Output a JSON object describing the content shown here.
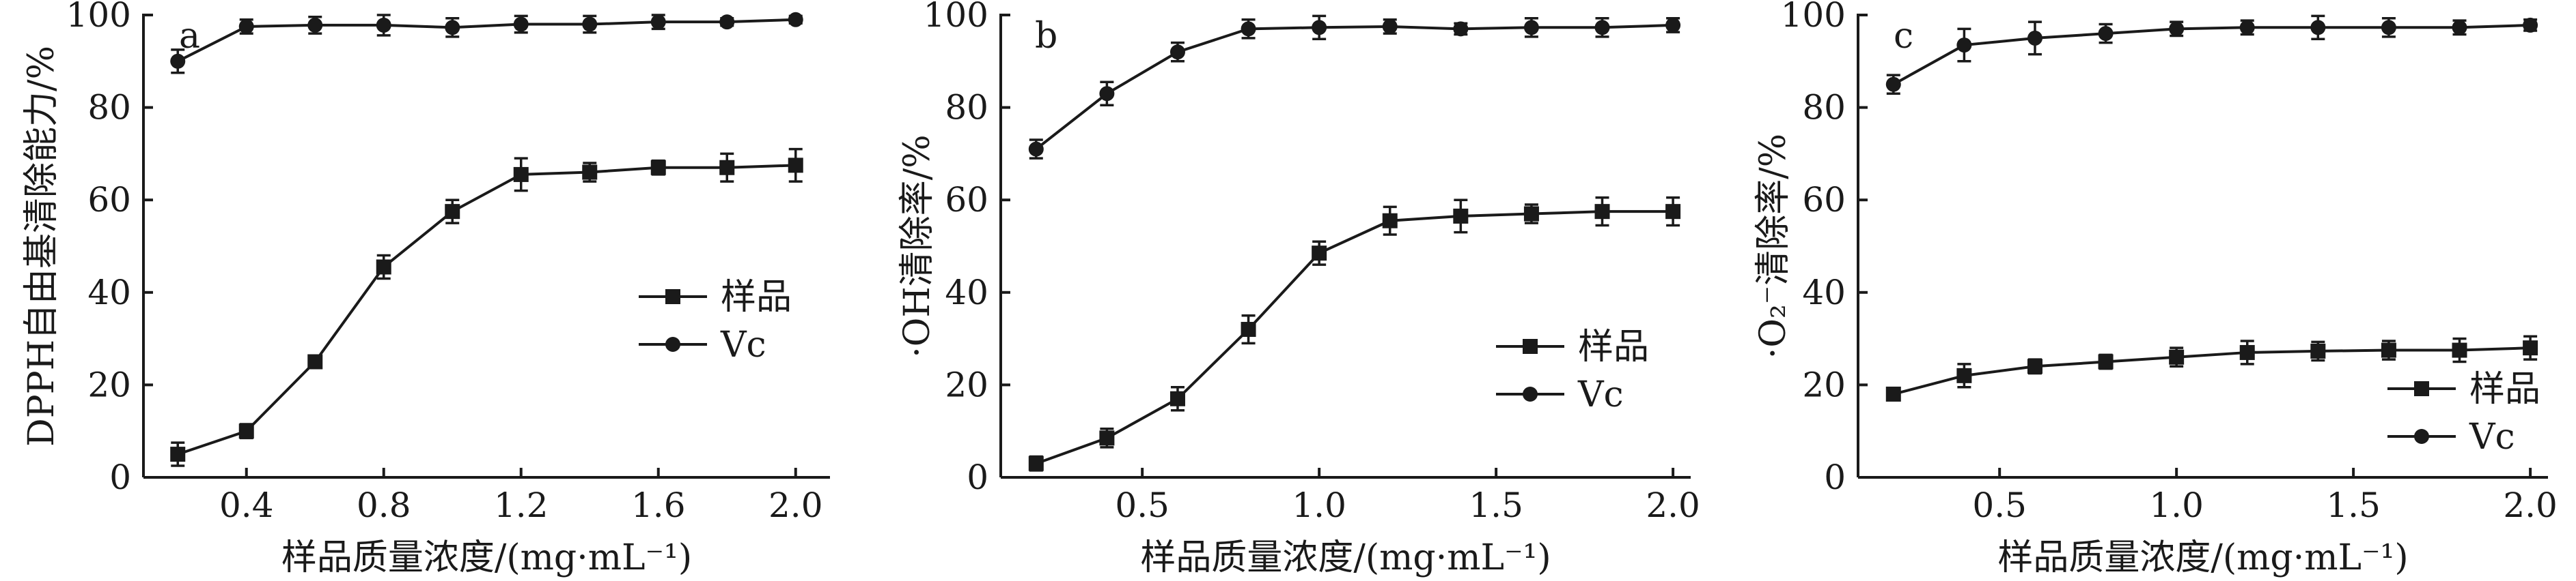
{
  "chart_data": [
    {
      "type": "line",
      "panel": "a",
      "ylabel": "DPPH自由基清除能力/%",
      "xlabel": "样品质量浓度/(mg·mL⁻¹)",
      "xlim": [
        0.1,
        2.1
      ],
      "ylim": [
        0,
        100
      ],
      "xticks": [
        "0.4",
        "0.8",
        "1.2",
        "1.6",
        "2.0"
      ],
      "xtick_values": [
        0.4,
        0.8,
        1.2,
        1.6,
        2.0
      ],
      "yticks": [
        "0",
        "20",
        "40",
        "60",
        "80",
        "100"
      ],
      "ytick_values": [
        0,
        20,
        40,
        60,
        80,
        100
      ],
      "legend_position": "center-right",
      "x": [
        0.2,
        0.4,
        0.6,
        0.8,
        1.0,
        1.2,
        1.4,
        1.6,
        1.8,
        2.0
      ],
      "series": [
        {
          "name": "样品",
          "marker": "square",
          "values": [
            5,
            10,
            25,
            45.5,
            57.5,
            65.5,
            66,
            67,
            67,
            67.5
          ],
          "errors": [
            2.5,
            1.5,
            0.8,
            2.5,
            2.5,
            3.5,
            2,
            1.5,
            3,
            3.5
          ]
        },
        {
          "name": "Vc",
          "marker": "circle",
          "values": [
            90,
            97.5,
            97.8,
            97.8,
            97.3,
            98,
            98,
            98.5,
            98.5,
            99
          ],
          "errors": [
            2.5,
            1.5,
            1.8,
            2.2,
            2,
            1.8,
            1.8,
            1.5,
            0.8,
            0.8
          ]
        }
      ]
    },
    {
      "type": "line",
      "panel": "b",
      "ylabel": "·OH清除率/%",
      "xlabel": "样品质量浓度/(mg·mL⁻¹)",
      "xlim": [
        0.1,
        2.05
      ],
      "ylim": [
        0,
        100
      ],
      "xticks": [
        "0.5",
        "1.0",
        "1.5",
        "2.0"
      ],
      "xtick_values": [
        0.5,
        1.0,
        1.5,
        2.0
      ],
      "yticks": [
        "0",
        "20",
        "40",
        "60",
        "80",
        "100"
      ],
      "ytick_values": [
        0,
        20,
        40,
        60,
        80,
        100
      ],
      "legend_position": "lower-right",
      "x": [
        0.2,
        0.4,
        0.6,
        0.8,
        1.0,
        1.2,
        1.4,
        1.6,
        1.8,
        2.0
      ],
      "series": [
        {
          "name": "样品",
          "marker": "square",
          "values": [
            3,
            8.5,
            17,
            32,
            48.5,
            55.5,
            56.5,
            57,
            57.5,
            57.5
          ],
          "errors": [
            1.5,
            2,
            2.5,
            3,
            2.5,
            3,
            3.5,
            2,
            3,
            3
          ]
        },
        {
          "name": "Vc",
          "marker": "circle",
          "values": [
            71,
            83,
            92,
            97,
            97.3,
            97.5,
            97,
            97.3,
            97.3,
            97.8
          ],
          "errors": [
            2,
            2.5,
            2,
            2,
            2.5,
            1.5,
            1.2,
            2,
            2,
            1.5
          ]
        }
      ]
    },
    {
      "type": "line",
      "panel": "c",
      "ylabel": "·O₂⁻清除率/%",
      "xlabel": "样品质量浓度/(mg·mL⁻¹)",
      "xlim": [
        0.1,
        2.05
      ],
      "ylim": [
        0,
        100
      ],
      "xticks": [
        "0.5",
        "1.0",
        "1.5",
        "2.0"
      ],
      "xtick_values": [
        0.5,
        1.0,
        1.5,
        2.0
      ],
      "yticks": [
        "0",
        "20",
        "40",
        "60",
        "80",
        "100"
      ],
      "ytick_values": [
        0,
        20,
        40,
        60,
        80,
        100
      ],
      "legend_position": "lower-right",
      "x": [
        0.2,
        0.4,
        0.6,
        0.8,
        1.0,
        1.2,
        1.4,
        1.6,
        1.8,
        2.0
      ],
      "series": [
        {
          "name": "样品",
          "marker": "square",
          "values": [
            18,
            22,
            24,
            25,
            26,
            27,
            27.3,
            27.5,
            27.5,
            28
          ],
          "errors": [
            1.2,
            2.5,
            1.5,
            1.5,
            2,
            2.5,
            2,
            2,
            2.5,
            2.5
          ]
        },
        {
          "name": "Vc",
          "marker": "circle",
          "values": [
            85,
            93.5,
            95,
            96,
            97,
            97.3,
            97.3,
            97.3,
            97.3,
            97.8
          ],
          "errors": [
            2,
            3.5,
            3.5,
            2,
            1.5,
            1.5,
            2.5,
            2,
            1.5,
            1.2
          ]
        }
      ]
    }
  ]
}
